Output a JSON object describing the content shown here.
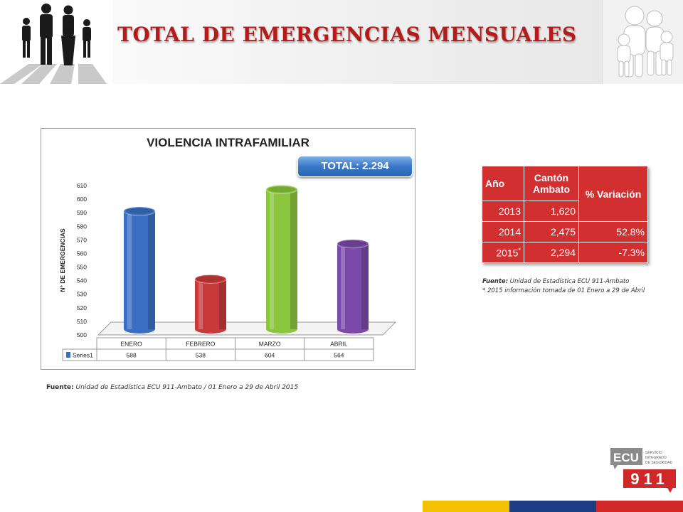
{
  "header": {
    "title": "TOTAL DE EMERGENCIAS MENSUALES"
  },
  "chart": {
    "total_label": "TOTAL: 2.294"
  },
  "chart_data": {
    "type": "bar",
    "title": "VIOLENCIA INTRAFAMILIAR",
    "xlabel": "",
    "ylabel": "N° DE EMERGENCIAS",
    "categories": [
      "ENERO",
      "FEBRERO",
      "MARZO",
      "ABRIL"
    ],
    "series": [
      {
        "name": "Series1",
        "values": [
          588,
          538,
          604,
          564
        ],
        "colors": [
          "#3b6fc4",
          "#c83a3a",
          "#8cc63e",
          "#7b4aa8"
        ]
      }
    ],
    "ylim": [
      500,
      610
    ],
    "yticks": [
      500,
      510,
      520,
      530,
      540,
      550,
      560,
      570,
      580,
      590,
      600,
      610
    ],
    "data_table": true,
    "grid": false
  },
  "source_chart": {
    "label": "Fuente:",
    "value": "Unidad de Estadística ECU 911-Ambato / 01 Enero a 29 de Abril 2015"
  },
  "table": {
    "headers": [
      "Año",
      "Cantón Ambato",
      "% Variación"
    ],
    "rows": [
      [
        "2013",
        "1,620",
        ""
      ],
      [
        "2014",
        "2,475",
        "52.8%"
      ],
      [
        "2015",
        "2,294",
        "-7.3%"
      ]
    ],
    "asterisk": "*"
  },
  "source_table": {
    "label": "Fuente:",
    "value": "Unidad de Estadística ECU 911-Ambato",
    "note": "* 2015 información tomada de 01 Enero a 29 de Abril"
  },
  "logo": {
    "ecu": "ECU",
    "number": "911",
    "tagline": [
      "SERVICIO",
      "INTEGRADO",
      "DE SEGURIDAD"
    ]
  },
  "colors": {
    "title": "#b41c1c",
    "table_bg": "#d23030",
    "bottom_bar": [
      "#f2c200",
      "#1c3e82",
      "#d02828"
    ]
  }
}
